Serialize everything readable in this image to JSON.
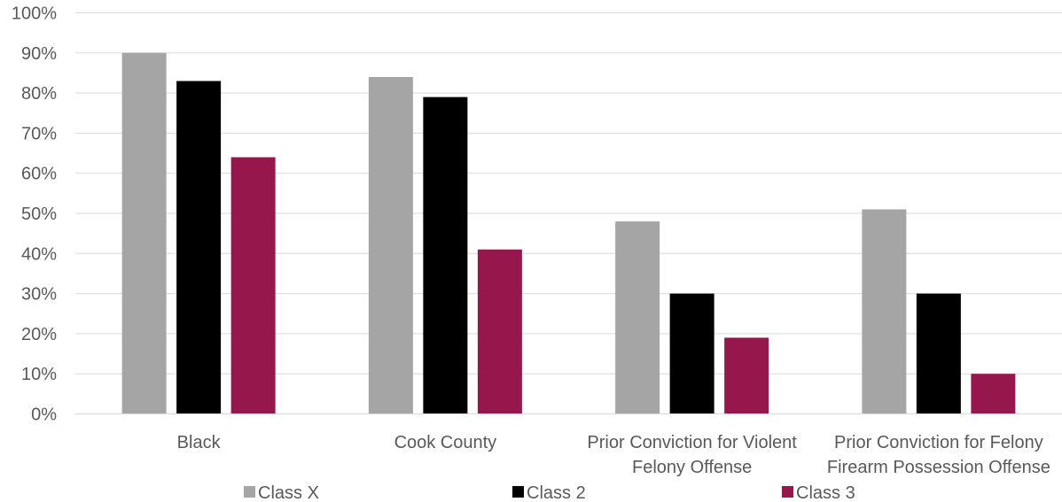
{
  "chart_data": {
    "type": "bar",
    "title": "",
    "xlabel": "",
    "ylabel": "",
    "ylim": [
      0,
      100
    ],
    "yticks": [
      "0%",
      "10%",
      "20%",
      "30%",
      "40%",
      "50%",
      "60%",
      "70%",
      "80%",
      "90%",
      "100%"
    ],
    "ytick_values": [
      0,
      10,
      20,
      30,
      40,
      50,
      60,
      70,
      80,
      90,
      100
    ],
    "categories": [
      [
        "Black"
      ],
      [
        "Cook County"
      ],
      [
        "Prior Conviction for Violent",
        "Felony Offense"
      ],
      [
        "Prior Conviction for Felony",
        "Firearm Possession Offense"
      ]
    ],
    "series": [
      {
        "name": "Class X",
        "color": "#a5a5a5",
        "values": [
          90,
          84,
          48,
          51
        ]
      },
      {
        "name": "Class 2",
        "color": "#000000",
        "values": [
          83,
          79,
          30,
          30
        ]
      },
      {
        "name": "Class 3",
        "color": "#95174c",
        "values": [
          64,
          41,
          19,
          10
        ]
      }
    ],
    "grid": true,
    "legend_position": "bottom"
  }
}
